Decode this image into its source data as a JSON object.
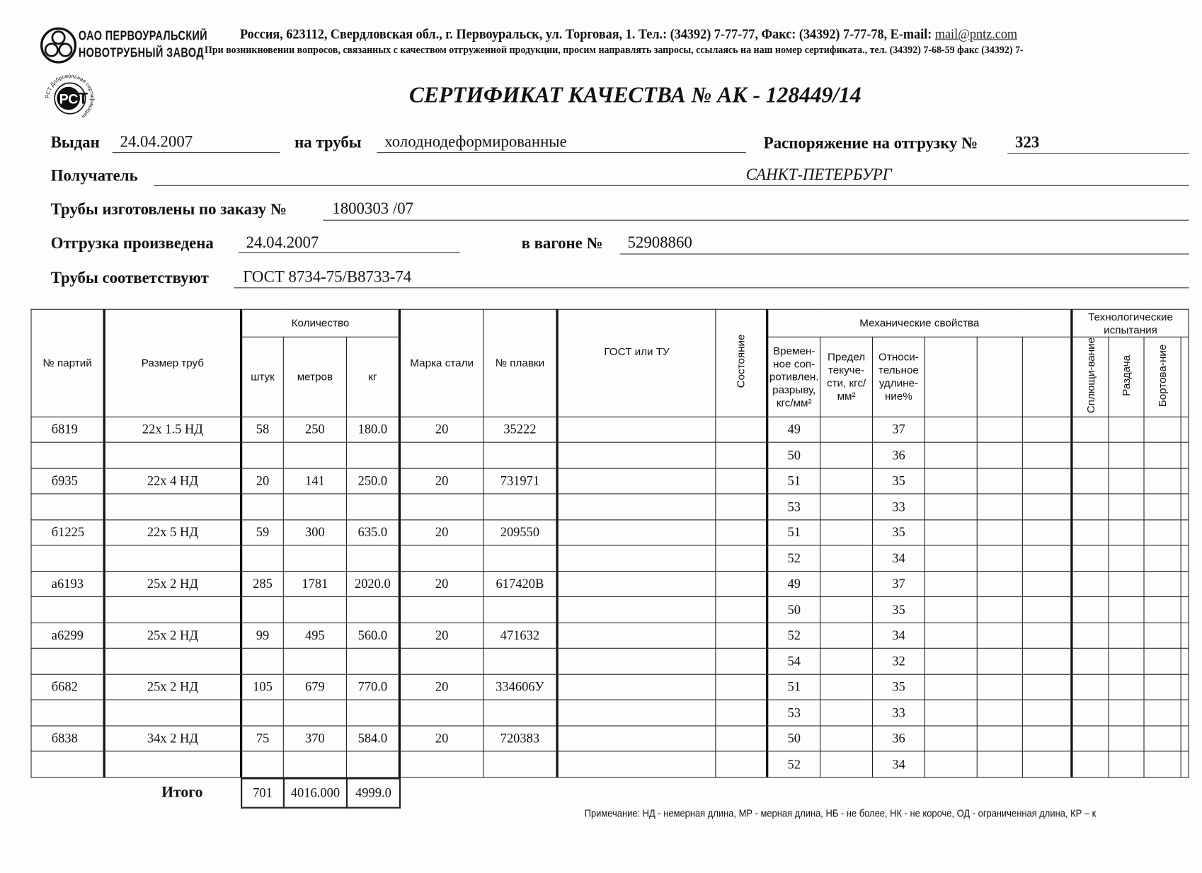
{
  "company": {
    "name_line1": "ОАО ПЕРВОУРАЛЬСКИЙ",
    "name_line2": "НОВОТРУБНЫЙ ЗАВОД",
    "address": "Россия, 623112, Свердловская обл., г. Первоуральск, ул. Торговая, 1. Тел.: (34392) 7-77-77, Факс: (34392) 7-77-78,  E-mail: ",
    "email": "mail@pntz.com",
    "notice": "При возникновении вопросов, связанных с качеством отгруженной продукции, просим направлять запросы, ссылаясь на наш номер сертификата., тел. (34392) 7-68-59 факс (34392) 7-",
    "cert_mark": "РСТ Добровольная сертификация"
  },
  "title": "СЕРТИФИКАТ КАЧЕСТВА   №  АК -  128449/14",
  "fields": {
    "issued_label": "Выдан",
    "issued_value": "24.04.2007",
    "pipes_label": "на трубы",
    "pipes_value": "холоднодеформированные",
    "order_label": "Распоряжение на отгрузку №",
    "order_value": "323",
    "recipient_label": "Получатель",
    "recipient_value": "САНКТ-ПЕТЕРБУРГ",
    "made_label": "Трубы изготовлены по заказу №",
    "made_value": "1800303   /07",
    "shipped_label": "Отгрузка произведена",
    "shipped_value": "24.04.2007",
    "wagon_label": "в вагоне №",
    "wagon_value": "52908860",
    "conform_label": "Трубы соответствуют",
    "conform_value": "ГОСТ 8734-75/В8733-74"
  },
  "table": {
    "headers": {
      "batch": "№ партий",
      "size": "Размер труб",
      "qty": "Количество",
      "pcs": "штук",
      "meters": "метров",
      "kg": "кг",
      "steel": "Марка стали",
      "heat": "№ плавки",
      "gost": "ГОСТ или ТУ",
      "state": "Состояние",
      "mech": "Механические свойства",
      "tensile": "Времен-ное соп-ротивлен. разрыву, кгс/мм²",
      "yield": "Предел текуче-сти, кгс/мм²",
      "elong": "Относи-тельное удлине-ние%",
      "tech": "Технологические испытания",
      "flatten": "Сплющи-вание",
      "expand": "Раздача",
      "flange": "Бортова-ние"
    },
    "rows": [
      {
        "batch": "б819",
        "size": "22х 1.5 НД",
        "pcs": "58",
        "meters": "250",
        "kg": "180.0",
        "steel": "20",
        "heat": "35222",
        "tests": [
          {
            "tensile": "49",
            "elong": "37"
          },
          {
            "tensile": "50",
            "elong": "36"
          }
        ]
      },
      {
        "batch": "б935",
        "size": "22х 4 НД",
        "pcs": "20",
        "meters": "141",
        "kg": "250.0",
        "steel": "20",
        "heat": "731971",
        "tests": [
          {
            "tensile": "51",
            "elong": "35"
          },
          {
            "tensile": "53",
            "elong": "33"
          }
        ]
      },
      {
        "batch": "б1225",
        "size": "22х 5 НД",
        "pcs": "59",
        "meters": "300",
        "kg": "635.0",
        "steel": "20",
        "heat": "209550",
        "tests": [
          {
            "tensile": "51",
            "elong": "35"
          },
          {
            "tensile": "52",
            "elong": "34"
          }
        ]
      },
      {
        "batch": "а6193",
        "size": "25х 2 НД",
        "pcs": "285",
        "meters": "1781",
        "kg": "2020.0",
        "steel": "20",
        "heat": "617420В",
        "tests": [
          {
            "tensile": "49",
            "elong": "37"
          },
          {
            "tensile": "50",
            "elong": "35"
          }
        ]
      },
      {
        "batch": "а6299",
        "size": "25х 2 НД",
        "pcs": "99",
        "meters": "495",
        "kg": "560.0",
        "steel": "20",
        "heat": "471632",
        "tests": [
          {
            "tensile": "52",
            "elong": "34"
          },
          {
            "tensile": "54",
            "elong": "32"
          }
        ]
      },
      {
        "batch": "б682",
        "size": "25х 2 НД",
        "pcs": "105",
        "meters": "679",
        "kg": "770.0",
        "steel": "20",
        "heat": "334606У",
        "tests": [
          {
            "tensile": "51",
            "elong": "35"
          },
          {
            "tensile": "53",
            "elong": "33"
          }
        ]
      },
      {
        "batch": "б838",
        "size": "34х 2 НД",
        "pcs": "75",
        "meters": "370",
        "kg": "584.0",
        "steel": "20",
        "heat": "720383",
        "tests": [
          {
            "tensile": "50",
            "elong": "36"
          },
          {
            "tensile": "52",
            "elong": "34"
          }
        ]
      }
    ],
    "total": {
      "label": "Итого",
      "pcs": "701",
      "meters": "4016.000",
      "kg": "4999.0"
    }
  },
  "footnote": "Примечание: НД - немерная длина, МР - мерная длина, НБ - не более, НК - не короче, ОД - ограниченная длина, КР – к"
}
